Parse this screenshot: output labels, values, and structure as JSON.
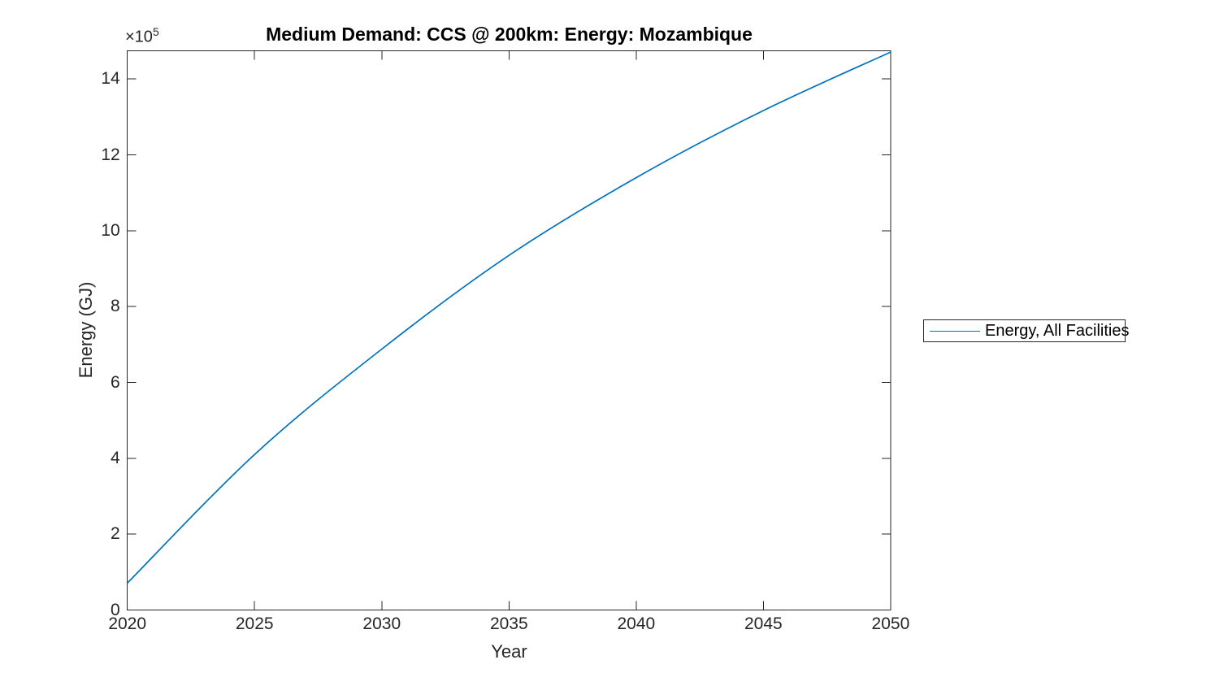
{
  "figure": {
    "title": "Medium Demand: CCS @ 200km: Energy: Mozambique",
    "axis_multiplier": {
      "base": "×10",
      "exponent": "5"
    },
    "xlabel": "Year",
    "ylabel": "Energy (GJ)",
    "legend": {
      "items": [
        {
          "label": "Energy, All Facilities",
          "color": "#0072BD"
        }
      ]
    },
    "colors": {
      "line": "#0072BD",
      "axis": "#262626",
      "tick_text": "#262626",
      "title_text": "#000000",
      "background": "#ffffff",
      "legend_border": "#262626"
    }
  },
  "chart_data": {
    "type": "line",
    "title": "Medium Demand: CCS @ 200km: Energy: Mozambique",
    "xlabel": "Year",
    "ylabel": "Energy (GJ)",
    "y_units_note": "y values in units of 1e5 GJ (axis multiplier ×10^5)",
    "x": [
      2020,
      2025,
      2030,
      2035,
      2040,
      2045,
      2050
    ],
    "series": [
      {
        "name": "Energy, All Facilities",
        "color": "#0072BD",
        "values": [
          0.71,
          4.1,
          6.88,
          9.35,
          11.4,
          13.17,
          14.71
        ]
      }
    ],
    "xlim": [
      2020,
      2050
    ],
    "ylim": [
      0,
      14.74
    ],
    "x_ticks": [
      2020,
      2025,
      2030,
      2035,
      2040,
      2045,
      2050
    ],
    "y_ticks": [
      0,
      2,
      4,
      6,
      8,
      10,
      12,
      14
    ],
    "grid": false,
    "box": true,
    "tick_direction": "in",
    "legend_position": "outside-right-middle"
  }
}
